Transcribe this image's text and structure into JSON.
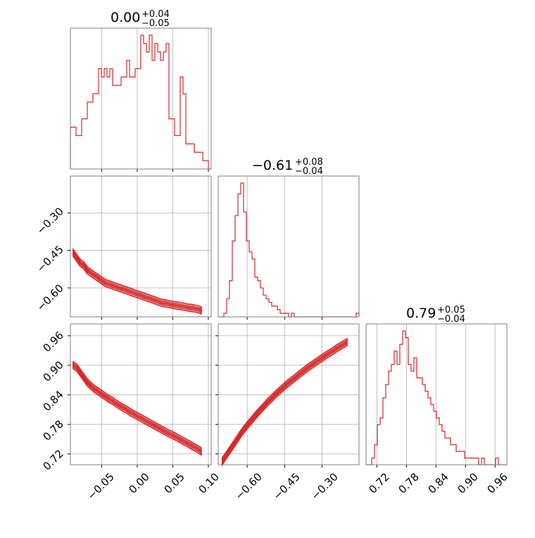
{
  "chart_data": {
    "type": "corner",
    "params": [
      {
        "title": {
          "main": "0.00",
          "plus": "+0.04",
          "minus": "−0.05"
        },
        "range": [
          -0.094,
          0.104
        ],
        "ticks": [
          -0.05,
          0.0,
          0.05,
          0.1
        ],
        "tick_labels": [
          "−0.05",
          "0.00",
          "0.05",
          "0.10"
        ]
      },
      {
        "title": {
          "main": "−0.61",
          "plus": "+0.08",
          "minus": "−0.04"
        },
        "range": [
          -0.716,
          -0.152
        ],
        "ticks": [
          -0.6,
          -0.45,
          -0.3
        ],
        "tick_labels": [
          "−0.60",
          "−0.45",
          "−0.30"
        ]
      },
      {
        "title": {
          "main": "0.79",
          "plus": "+0.05",
          "minus": "−0.04"
        },
        "range": [
          0.698,
          0.984
        ],
        "ticks": [
          0.72,
          0.78,
          0.84,
          0.9,
          0.96
        ],
        "tick_labels": [
          "0.72",
          "0.78",
          "0.84",
          "0.90",
          "0.96"
        ]
      }
    ],
    "histograms": [
      {
        "param": 0,
        "counts": [
          5,
          5,
          4,
          4,
          6,
          6,
          8,
          8,
          9,
          9,
          12,
          11,
          12,
          11,
          12,
          10,
          10,
          10,
          11,
          11,
          13,
          11,
          11,
          12,
          12,
          16,
          15,
          14,
          16,
          13,
          15,
          14,
          13,
          14,
          15,
          6,
          6,
          4,
          4,
          11,
          9,
          3,
          3,
          3,
          2,
          2,
          2,
          1,
          1,
          0
        ]
      },
      {
        "param": 1,
        "counts": [
          0,
          0,
          1,
          5,
          10,
          21,
          28,
          34,
          37,
          29,
          21,
          18,
          16,
          11,
          10,
          8,
          6,
          5,
          4,
          3,
          3,
          2,
          1,
          1,
          1,
          0,
          1,
          0,
          0,
          0,
          0,
          0,
          0,
          0,
          0,
          0,
          0,
          0,
          0,
          0,
          0,
          0,
          0,
          0,
          0,
          0,
          0,
          0,
          0,
          1
        ]
      },
      {
        "param": 2,
        "counts": [
          0,
          0,
          1,
          3,
          6,
          7,
          10,
          12,
          14,
          15,
          17,
          15,
          18,
          20,
          19,
          15,
          14,
          16,
          13,
          13,
          12,
          11,
          10,
          9,
          8,
          7,
          6,
          5,
          4,
          4,
          3,
          3,
          2,
          2,
          2,
          1,
          1,
          1,
          1,
          1,
          0,
          1,
          0,
          0,
          0,
          0,
          1,
          0,
          0,
          0
        ]
      }
    ],
    "scatter": [
      {
        "x_param": 0,
        "y_param": 1,
        "x": [
          -0.09,
          -0.085,
          -0.08,
          -0.075,
          -0.07,
          -0.065,
          -0.06,
          -0.055,
          -0.05,
          -0.045,
          -0.04,
          -0.035,
          -0.03,
          -0.025,
          -0.02,
          -0.015,
          -0.01,
          -0.005,
          0.0,
          0.005,
          0.01,
          0.015,
          0.02,
          0.025,
          0.03,
          0.035,
          0.04,
          0.045,
          0.05,
          0.055,
          0.06,
          0.065,
          0.07,
          0.075,
          0.08,
          0.085,
          0.09
        ],
        "y": [
          -0.46,
          -0.48,
          -0.5,
          -0.51,
          -0.53,
          -0.54,
          -0.55,
          -0.56,
          -0.57,
          -0.58,
          -0.585,
          -0.59,
          -0.595,
          -0.6,
          -0.605,
          -0.61,
          -0.615,
          -0.62,
          -0.625,
          -0.63,
          -0.635,
          -0.64,
          -0.645,
          -0.65,
          -0.655,
          -0.66,
          -0.662,
          -0.665,
          -0.668,
          -0.67,
          -0.672,
          -0.675,
          -0.678,
          -0.68,
          -0.682,
          -0.685,
          -0.69
        ]
      },
      {
        "x_param": 0,
        "y_param": 2,
        "x": [
          -0.09,
          -0.085,
          -0.08,
          -0.075,
          -0.07,
          -0.065,
          -0.06,
          -0.055,
          -0.05,
          -0.045,
          -0.04,
          -0.035,
          -0.03,
          -0.025,
          -0.02,
          -0.015,
          -0.01,
          -0.005,
          0.0,
          0.005,
          0.01,
          0.015,
          0.02,
          0.025,
          0.03,
          0.035,
          0.04,
          0.045,
          0.05,
          0.055,
          0.06,
          0.065,
          0.07,
          0.075,
          0.08,
          0.085,
          0.09
        ],
        "y": [
          0.9,
          0.895,
          0.885,
          0.875,
          0.865,
          0.858,
          0.852,
          0.847,
          0.842,
          0.837,
          0.832,
          0.828,
          0.823,
          0.818,
          0.814,
          0.81,
          0.805,
          0.801,
          0.797,
          0.793,
          0.789,
          0.785,
          0.781,
          0.777,
          0.773,
          0.769,
          0.765,
          0.761,
          0.758,
          0.754,
          0.75,
          0.746,
          0.742,
          0.738,
          0.734,
          0.73,
          0.725
        ]
      },
      {
        "x_param": 1,
        "y_param": 2,
        "x": [
          -0.7,
          -0.68,
          -0.66,
          -0.64,
          -0.62,
          -0.6,
          -0.58,
          -0.56,
          -0.54,
          -0.52,
          -0.5,
          -0.48,
          -0.46,
          -0.44,
          -0.42,
          -0.4,
          -0.38,
          -0.36,
          -0.34,
          -0.32,
          -0.3,
          -0.28,
          -0.26,
          -0.24,
          -0.22,
          -0.2
        ],
        "y": [
          0.705,
          0.72,
          0.735,
          0.75,
          0.765,
          0.778,
          0.79,
          0.802,
          0.813,
          0.824,
          0.834,
          0.844,
          0.853,
          0.862,
          0.87,
          0.878,
          0.886,
          0.894,
          0.901,
          0.908,
          0.915,
          0.922,
          0.928,
          0.935,
          0.941,
          0.947
        ]
      }
    ],
    "color": "#d62728",
    "grid": true
  }
}
